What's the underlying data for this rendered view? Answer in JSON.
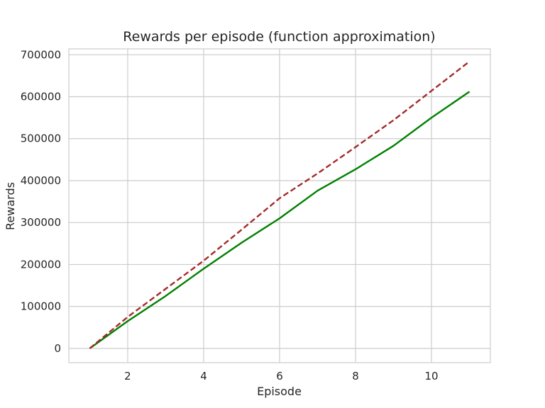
{
  "chart_data": {
    "type": "line",
    "title": "Rewards per episode (function approximation)",
    "xlabel": "Episode",
    "ylabel": "Rewards",
    "xlim": [
      0.45,
      11.55
    ],
    "ylim": [
      -34000,
      714000
    ],
    "xticks": [
      2,
      4,
      6,
      8,
      10
    ],
    "yticks": [
      0,
      100000,
      200000,
      300000,
      400000,
      500000,
      600000,
      700000
    ],
    "grid": true,
    "legend": "none",
    "series": [
      {
        "color": "#008000",
        "style": "solid",
        "x": [
          1,
          2,
          3,
          4,
          5,
          6,
          7,
          8,
          9,
          10,
          11
        ],
        "y": [
          0,
          65000,
          125000,
          190000,
          252000,
          310000,
          376000,
          427000,
          483000,
          550000,
          612000
        ]
      },
      {
        "color": "#a52a2a",
        "style": "dashed",
        "x": [
          1,
          2,
          3,
          4,
          5,
          6,
          7,
          8,
          9,
          10,
          11
        ],
        "y": [
          0,
          75000,
          142000,
          209000,
          283000,
          358000,
          417000,
          480000,
          544000,
          614000,
          684000
        ]
      }
    ]
  }
}
